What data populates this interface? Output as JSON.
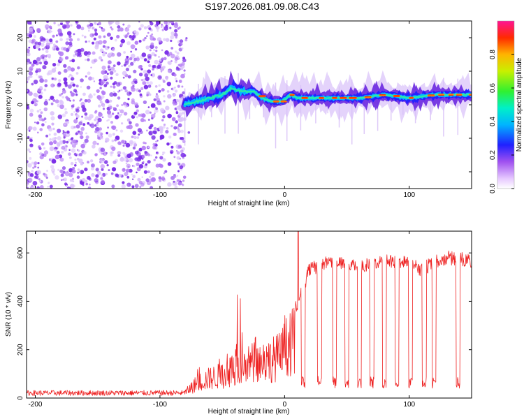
{
  "title": "S197.2026.081.09.08.C43",
  "colors": {
    "snr_line": "#ee2222",
    "frame": "#000000",
    "noise_purple": "#8a3cf0",
    "ridge_core": "#ff2200"
  },
  "chart_data": [
    {
      "type": "heatmap",
      "name": "spectrogram",
      "xlabel": "Height of straight line (km)",
      "ylabel": "Frequency (Hz)",
      "xlim": [
        -207,
        150
      ],
      "ylim": [
        -25,
        25
      ],
      "xticks": [
        -200,
        -100,
        0,
        100
      ],
      "yticks": [
        -20,
        -10,
        0,
        10,
        20
      ],
      "colorbar": {
        "label": "Normalized spectral amplitude",
        "range": [
          0,
          1
        ],
        "ticks": [
          "0.0",
          "0.2",
          "0.4",
          "0.6",
          "0.8"
        ]
      },
      "noise_region_x": [
        -207,
        -80
      ],
      "ridge_x": [
        -80,
        150
      ],
      "ridge_frequency_hz": [
        [
          -80,
          0
        ],
        [
          -70,
          1
        ],
        [
          -60,
          2
        ],
        [
          -50,
          3
        ],
        [
          -43,
          5
        ],
        [
          -35,
          4
        ],
        [
          -25,
          4
        ],
        [
          -18,
          2
        ],
        [
          -10,
          1
        ],
        [
          -2,
          1
        ],
        [
          5,
          3
        ],
        [
          10,
          2
        ],
        [
          20,
          2
        ],
        [
          40,
          2
        ],
        [
          60,
          2
        ],
        [
          80,
          3
        ],
        [
          100,
          2
        ],
        [
          120,
          3
        ],
        [
          150,
          3
        ]
      ]
    },
    {
      "type": "line",
      "name": "snr",
      "xlabel": "Height of straight line (km)",
      "ylabel": "SNR (10 * v/v)",
      "xlim": [
        -207,
        150
      ],
      "ylim": [
        0,
        690
      ],
      "xticks": [
        -200,
        -100,
        0,
        100
      ],
      "yticks": [
        0,
        200,
        400,
        600
      ],
      "series": [
        {
          "name": "SNR",
          "envelope": [
            [
              -207,
              22
            ],
            [
              -90,
              22
            ],
            [
              -80,
              35
            ],
            [
              -70,
              100
            ],
            [
              -60,
              130
            ],
            [
              -50,
              150
            ],
            [
              -40,
              200
            ],
            [
              -30,
              230
            ],
            [
              -20,
              240
            ],
            [
              -10,
              255
            ],
            [
              -3,
              280
            ],
            [
              0,
              330
            ],
            [
              5,
              360
            ],
            [
              10,
              420
            ],
            [
              20,
              560
            ],
            [
              40,
              600
            ],
            [
              60,
              575
            ],
            [
              80,
              600
            ],
            [
              100,
              585
            ],
            [
              110,
              560
            ],
            [
              120,
              590
            ],
            [
              130,
              610
            ],
            [
              150,
              600
            ]
          ],
          "peak": [
            11,
            688
          ],
          "dropouts_x": [
            6,
            15,
            28,
            40,
            50,
            60,
            70,
            80,
            90,
            101,
            112,
            120,
            139
          ]
        }
      ]
    }
  ]
}
